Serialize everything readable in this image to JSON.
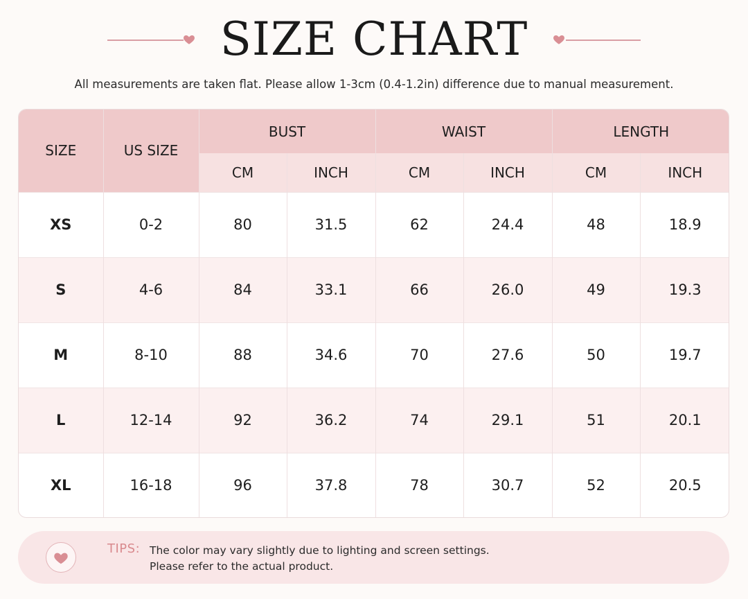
{
  "header": {
    "title": "SIZE CHART",
    "subtitle": "All measurements are taken flat. Please allow 1-3cm (0.4-1.2in) difference due to manual measurement."
  },
  "table": {
    "columns": {
      "size": "SIZE",
      "us_size": "US SIZE",
      "groups": [
        "BUST",
        "WAIST",
        "LENGTH"
      ],
      "units": [
        "CM",
        "INCH",
        "CM",
        "INCH",
        "CM",
        "INCH"
      ]
    },
    "rows": [
      [
        "XS",
        "0-2",
        "80",
        "31.5",
        "62",
        "24.4",
        "48",
        "18.9"
      ],
      [
        "S",
        "4-6",
        "84",
        "33.1",
        "66",
        "26.0",
        "49",
        "19.3"
      ],
      [
        "M",
        "8-10",
        "88",
        "34.6",
        "70",
        "27.6",
        "50",
        "19.7"
      ],
      [
        "L",
        "12-14",
        "92",
        "36.2",
        "74",
        "29.1",
        "51",
        "20.1"
      ],
      [
        "XL",
        "16-18",
        "96",
        "37.8",
        "78",
        "30.7",
        "52",
        "20.5"
      ]
    ]
  },
  "tips": {
    "label": "TIPS:",
    "line1": "The color may vary slightly due to lighting and screen settings.",
    "line2": "Please refer to the actual product."
  },
  "colors": {
    "header_pink": "#efc9ca",
    "subheader_pink": "#f7e1e1",
    "row_alt": "#fcf0f0",
    "accent": "#d98a8e",
    "heart": "#d98e94"
  },
  "icons": {
    "decor": "heart-icon",
    "tips": "heart-icon"
  }
}
